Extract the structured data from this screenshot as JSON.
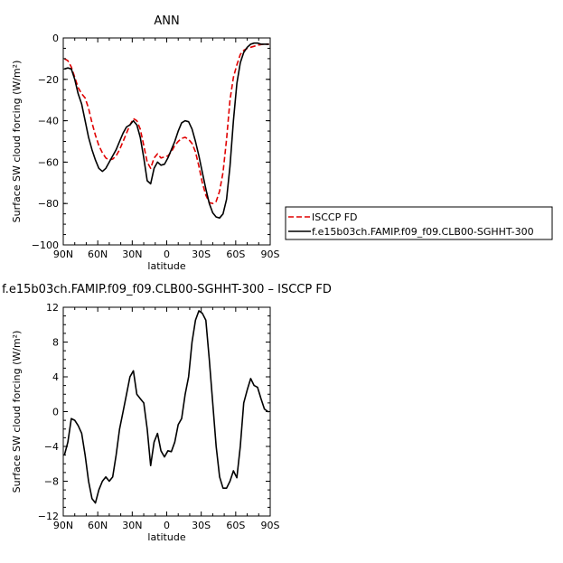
{
  "chart_data": [
    {
      "type": "line",
      "title": "ANN",
      "xlabel": "latitude",
      "ylabel": "Surface SW cloud forcing (W/m²)",
      "xlim": [
        90,
        -90
      ],
      "ylim": [
        -100,
        0
      ],
      "x_ticks": [
        90,
        60,
        30,
        0,
        -30,
        -60,
        -90
      ],
      "x_tick_labels": [
        "90N",
        "60N",
        "30N",
        "0",
        "30S",
        "60S",
        "90S"
      ],
      "y_ticks": [
        0,
        -20,
        -40,
        -60,
        -80,
        -100
      ],
      "y_tick_labels": [
        "0",
        "−20",
        "−40",
        "−60",
        "−80",
        "−100"
      ],
      "legend": {
        "placement": "right-outside",
        "entries": [
          "ISCCP FD",
          "f.e15b03ch.FAMIP.f09_f09.CLB00-SGHHT-300"
        ]
      },
      "series": [
        {
          "name": "ISCCP FD",
          "color": "#e00000",
          "dash": "dashed",
          "x": [
            89,
            86,
            83,
            80,
            77,
            74,
            71,
            68,
            65,
            62,
            59,
            56,
            53,
            50,
            47,
            44,
            41,
            38,
            35,
            32,
            29,
            26,
            23,
            20,
            17,
            14,
            11,
            8,
            5,
            2,
            -1,
            -4,
            -7,
            -10,
            -13,
            -16,
            -19,
            -22,
            -25,
            -28,
            -31,
            -34,
            -37,
            -40,
            -43,
            -46,
            -49,
            -52,
            -55,
            -58,
            -61,
            -64,
            -67,
            -70,
            -73,
            -76,
            -79,
            -82,
            -85,
            -88,
            -89
          ],
          "y": [
            -10,
            -11,
            -14,
            -19,
            -24,
            -27,
            -29,
            -34,
            -41,
            -47,
            -52,
            -55.5,
            -58,
            -59,
            -58.5,
            -57,
            -54,
            -50,
            -46,
            -42,
            -39,
            -40,
            -44,
            -52,
            -60,
            -63,
            -58,
            -56,
            -58,
            -57.5,
            -57,
            -55,
            -52,
            -50,
            -48.5,
            -48,
            -49,
            -51,
            -55,
            -62,
            -70,
            -76,
            -79.5,
            -80,
            -79,
            -74,
            -65,
            -49,
            -30,
            -19,
            -13,
            -8,
            -6,
            -5,
            -4.5,
            -4,
            -3.5,
            -3.2,
            -3,
            -3,
            -3
          ]
        },
        {
          "name": "f.e15b03ch.FAMIP.f09_f09.CLB00-SGHHT-300",
          "color": "#000000",
          "dash": "solid",
          "x": [
            89,
            86,
            83,
            80,
            77,
            74,
            71,
            68,
            65,
            62,
            59,
            56,
            53,
            50,
            47,
            44,
            41,
            38,
            35,
            32,
            29,
            26,
            23,
            20,
            17,
            14,
            11,
            8,
            5,
            2,
            -1,
            -4,
            -7,
            -10,
            -13,
            -16,
            -19,
            -22,
            -25,
            -28,
            -31,
            -34,
            -37,
            -40,
            -43,
            -46,
            -49,
            -52,
            -55,
            -58,
            -61,
            -64,
            -67,
            -70,
            -73,
            -76,
            -79,
            -82,
            -85,
            -88,
            -89
          ],
          "y": [
            -15,
            -14.5,
            -15,
            -20,
            -27,
            -32,
            -40,
            -48,
            -54,
            -59,
            -63,
            -64.5,
            -63,
            -60,
            -57,
            -54,
            -50,
            -46,
            -43,
            -42,
            -40,
            -42,
            -48,
            -58,
            -69,
            -70.5,
            -63,
            -60,
            -61.5,
            -61,
            -58,
            -54,
            -50,
            -45,
            -41,
            -40,
            -40.5,
            -44,
            -50,
            -57,
            -65,
            -73,
            -80,
            -84.5,
            -86.5,
            -87,
            -85,
            -78,
            -62,
            -40,
            -22,
            -12,
            -7,
            -4.5,
            -3,
            -2.5,
            -2.5,
            -3,
            -3,
            -3,
            -3
          ]
        }
      ]
    },
    {
      "type": "line",
      "title": "f.e15b03ch.FAMIP.f09_f09.CLB00-SGHHT-300 – ISCCP FD",
      "xlabel": "latitude",
      "ylabel": "Surface SW cloud forcing (W/m²)",
      "xlim": [
        90,
        -90
      ],
      "ylim": [
        -12,
        12
      ],
      "x_ticks": [
        90,
        60,
        30,
        0,
        -30,
        -60,
        -90
      ],
      "x_tick_labels": [
        "90N",
        "60N",
        "30N",
        "0",
        "30S",
        "60S",
        "90S"
      ],
      "y_ticks": [
        12,
        8,
        4,
        0,
        -4,
        -8,
        -12
      ],
      "y_tick_labels": [
        "12",
        "8",
        "4",
        "0",
        "−4",
        "−8",
        "−12"
      ],
      "series": [
        {
          "color": "#000000",
          "dash": "solid",
          "x": [
            89,
            86,
            83,
            80,
            77,
            74,
            71,
            68,
            65,
            62,
            59,
            56,
            53,
            50,
            47,
            44,
            41,
            38,
            35,
            32,
            29,
            26,
            23,
            20,
            17,
            14,
            11,
            8,
            5,
            2,
            -1,
            -4,
            -7,
            -10,
            -13,
            -16,
            -19,
            -22,
            -25,
            -28,
            -31,
            -34,
            -37,
            -40,
            -43,
            -46,
            -49,
            -52,
            -55,
            -58,
            -61,
            -64,
            -67,
            -70,
            -73,
            -76,
            -79,
            -82,
            -85,
            -88,
            -89
          ],
          "y": [
            -5,
            -3.5,
            -0.8,
            -1,
            -1.6,
            -2.5,
            -5,
            -8,
            -10,
            -10.5,
            -9,
            -8,
            -7.5,
            -8,
            -7.5,
            -5,
            -2,
            0,
            2,
            4,
            4.7,
            2,
            1.5,
            1,
            -2,
            -6.2,
            -3.5,
            -2.5,
            -4.5,
            -5.2,
            -4.5,
            -4.6,
            -3.5,
            -1.5,
            -0.8,
            2,
            4,
            8,
            10.5,
            11.6,
            11.3,
            10.5,
            6,
            1,
            -4,
            -7.5,
            -8.8,
            -8.8,
            -8,
            -6.8,
            -7.6,
            -4,
            1,
            2.5,
            3.8,
            3,
            2.8,
            1.5,
            0.3,
            0,
            0
          ]
        }
      ]
    }
  ]
}
